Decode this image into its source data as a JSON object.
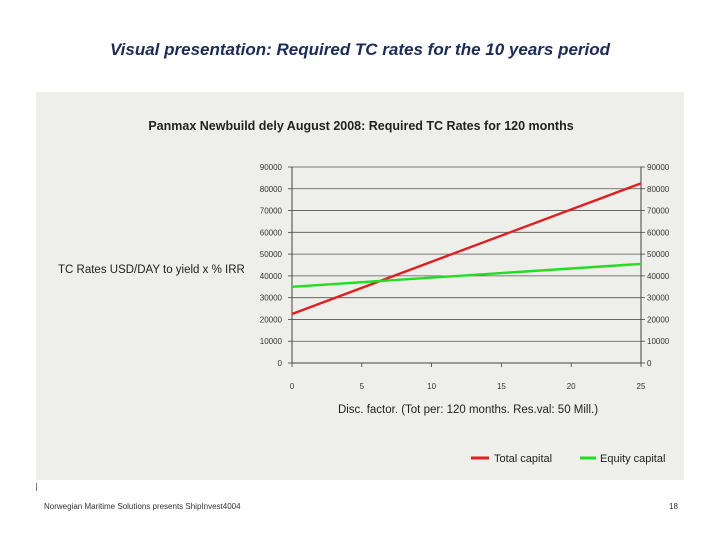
{
  "slide": {
    "title": "Visual presentation: Required TC rates for the 10 years period",
    "footer": "Norwegian Maritime Solutions presents ShipInvest4004",
    "page_number": "18"
  },
  "colors": {
    "panel_bg": "#eeeeea",
    "total_capital": "#e02020",
    "equity_capital": "#22dd22",
    "title": "#1a2b5c"
  },
  "chart_data": {
    "type": "line",
    "title": "Panmax Newbuild dely August 2008: Required TC Rates for 120 months",
    "xlabel": "Disc. factor. (Tot per: 120 months. Res.val: 50 Mill.)",
    "ylabel": "TC Rates USD/DAY to yield x % IRR",
    "x_ticks": [
      0,
      5,
      10,
      15,
      20,
      25
    ],
    "xlim": [
      0,
      25
    ],
    "y_ticks": [
      0,
      10000,
      20000,
      30000,
      40000,
      50000,
      60000,
      70000,
      80000,
      90000
    ],
    "y_tick_labels": [
      "0",
      "10000",
      "20000",
      "30000",
      "40000",
      "50000",
      "60000",
      "70000",
      "80000",
      "90000"
    ],
    "y_right_tick_labels": [
      "0",
      "10000",
      "20000",
      "30000",
      "40000",
      "50000",
      "60000",
      "70000",
      "80000",
      "90000"
    ],
    "ylim": [
      0,
      90000
    ],
    "grid": true,
    "legend_position": "bottom-right",
    "series": [
      {
        "name": "Total capital",
        "x": [
          0,
          25
        ],
        "values": [
          22500,
          82500
        ]
      },
      {
        "name": "Equity capital",
        "x": [
          0,
          25
        ],
        "values": [
          35000,
          45500
        ]
      }
    ]
  }
}
